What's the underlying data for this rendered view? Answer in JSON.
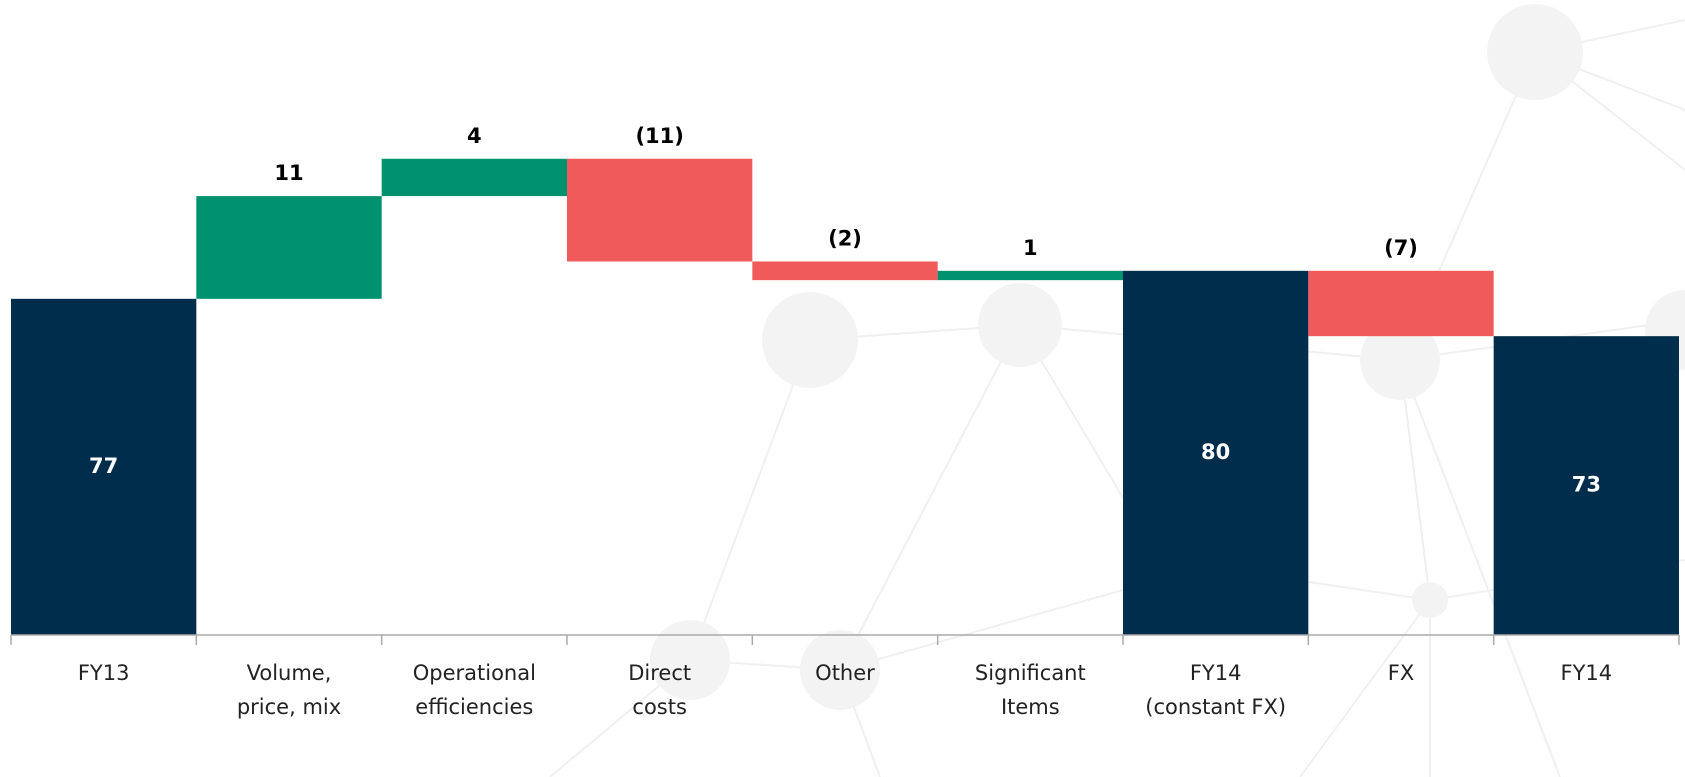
{
  "chart_data": {
    "type": "waterfall",
    "categories": [
      [
        "FY13"
      ],
      [
        "Volume,",
        "price, mix"
      ],
      [
        "Operational",
        "efficiencies"
      ],
      [
        "Direct",
        "costs"
      ],
      [
        "Other"
      ],
      [
        "Significant",
        "Items"
      ],
      [
        "FY14",
        "(constant FX)"
      ],
      [
        "FX"
      ],
      [
        "FY14"
      ]
    ],
    "measure": [
      "absolute",
      "relative",
      "relative",
      "relative",
      "relative",
      "relative",
      "absolute",
      "relative",
      "absolute"
    ],
    "values": [
      77,
      11,
      4,
      -11,
      -2,
      1,
      80,
      -7,
      73
    ],
    "value_labels": [
      "77",
      "11",
      "4",
      "(11)",
      "(2)",
      "1",
      "80",
      "(7)",
      "73"
    ],
    "colors": {
      "absolute": "#002d4b",
      "increase": "#00916e",
      "decrease": "#f05a5a"
    },
    "ylim": [
      41,
      109
    ]
  }
}
